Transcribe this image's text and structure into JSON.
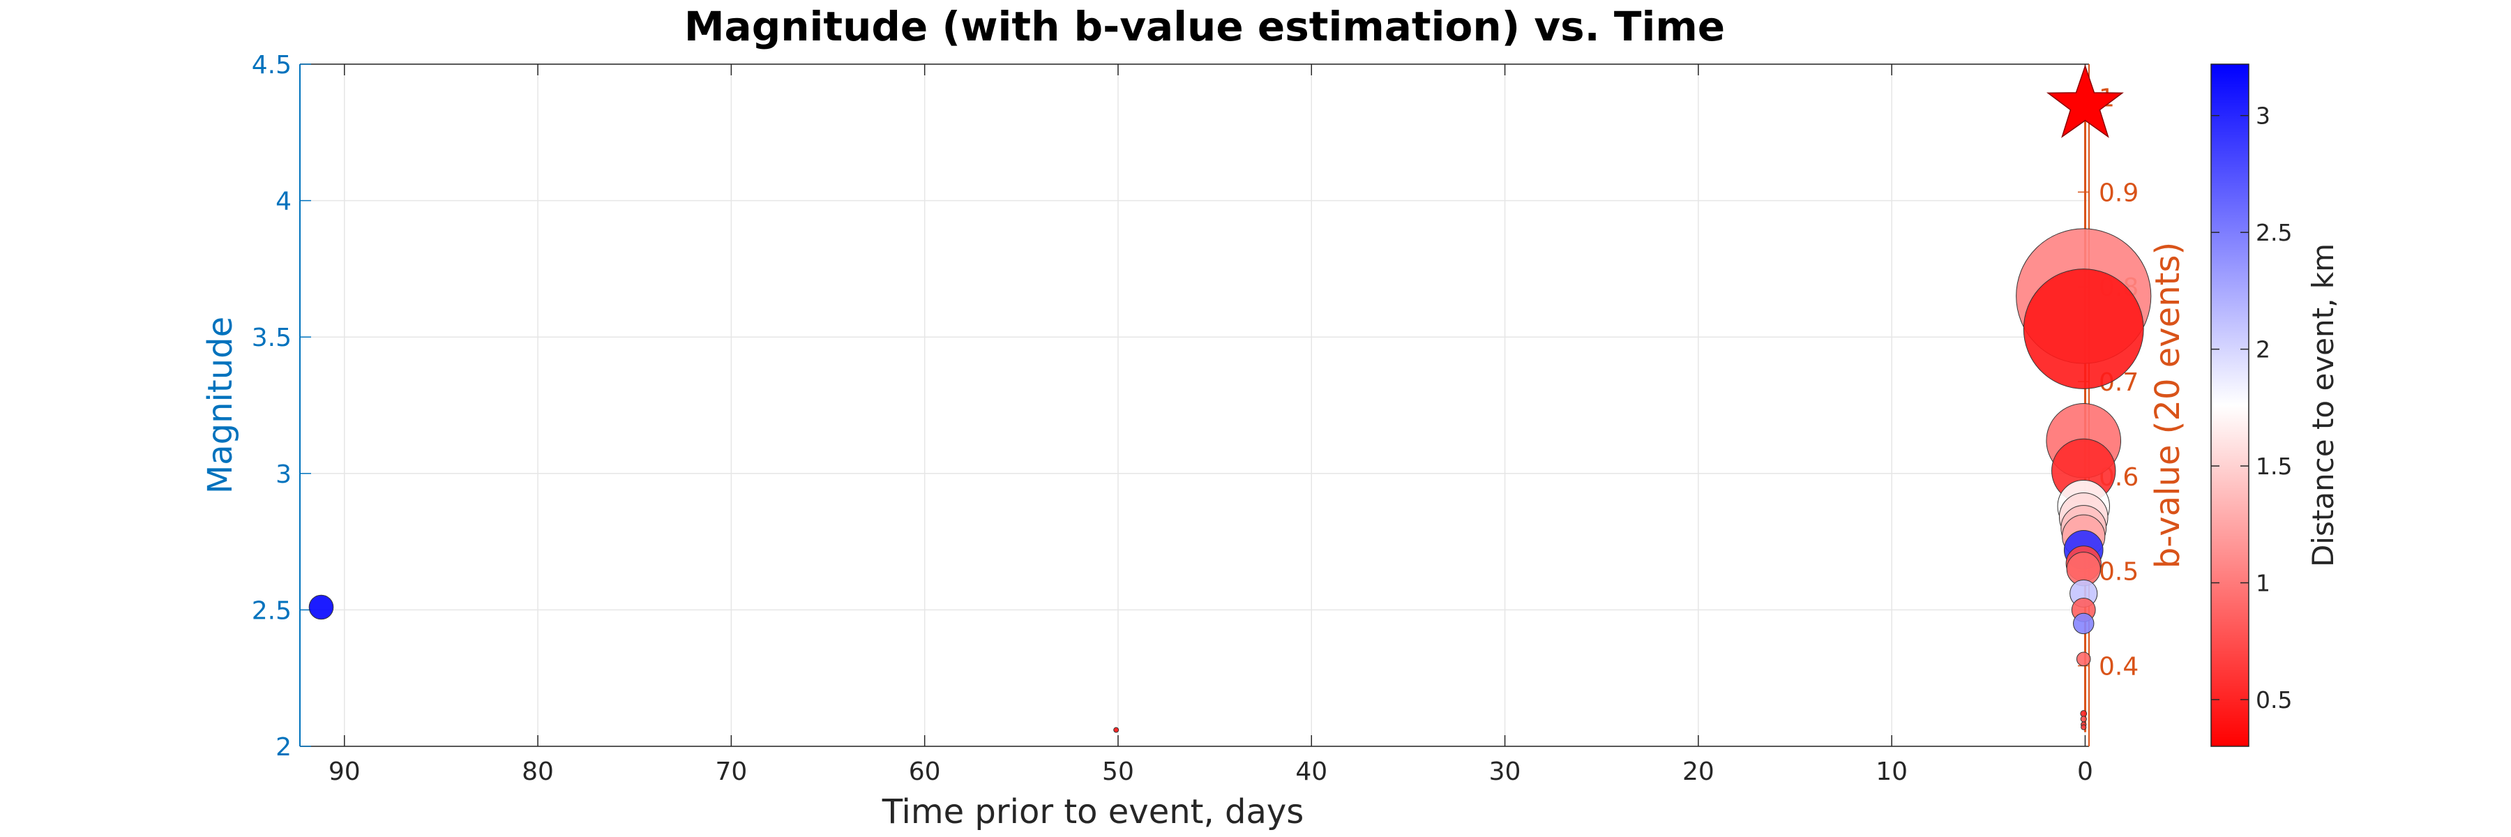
{
  "chart_data": {
    "type": "scatter",
    "title": "Magnitude (with b-value estimation) vs. Time",
    "xlabel": "Time prior to event, days",
    "ylabel_left": "Magnitude",
    "ylabel_right": "b-value (20 events)",
    "colorbar_label": "Distance to event, km",
    "x_reversed": true,
    "xlim": [
      92.3,
      -0.2
    ],
    "ylim_left": [
      2,
      4.5
    ],
    "ylim_right": [
      0.315,
      1.035
    ],
    "x_ticks": [
      90,
      80,
      70,
      60,
      50,
      40,
      30,
      20,
      10,
      0
    ],
    "y_ticks_left": [
      2,
      2.5,
      3,
      3.5,
      4,
      4.5
    ],
    "y_ticks_right": [
      0.4,
      0.5,
      0.6,
      0.7,
      0.8,
      0.9,
      1
    ],
    "colorbar_range": [
      0.3,
      3.22
    ],
    "colorbar_ticks": [
      0.5,
      1,
      1.5,
      2,
      2.5,
      3
    ],
    "grid": true,
    "colors": {
      "left_axis": "#0072BD",
      "right_axis": "#D95319",
      "near": "#FF0000",
      "mid": "#FFFFFF",
      "far": "#0000FF",
      "mainshock": "#FF0000"
    },
    "mainshock": {
      "x": 0,
      "magnitude": 4.35
    },
    "events": [
      {
        "x": 91.2,
        "magnitude": 2.51,
        "distance_km": 3.2
      },
      {
        "x": 50.1,
        "magnitude": 2.06,
        "distance_km": 0.4
      },
      {
        "x": 0.08,
        "magnitude": 3.65,
        "distance_km": 1.05
      },
      {
        "x": 0.08,
        "magnitude": 3.53,
        "distance_km": 0.45
      },
      {
        "x": 0.08,
        "magnitude": 3.12,
        "distance_km": 0.95
      },
      {
        "x": 0.08,
        "magnitude": 3.01,
        "distance_km": 0.55
      },
      {
        "x": 0.08,
        "magnitude": 2.88,
        "distance_km": 1.75
      },
      {
        "x": 0.08,
        "magnitude": 2.84,
        "distance_km": 1.55
      },
      {
        "x": 0.08,
        "magnitude": 2.8,
        "distance_km": 1.4
      },
      {
        "x": 0.08,
        "magnitude": 2.77,
        "distance_km": 1.25
      },
      {
        "x": 0.08,
        "magnitude": 2.72,
        "distance_km": 2.95
      },
      {
        "x": 0.08,
        "magnitude": 2.67,
        "distance_km": 0.7
      },
      {
        "x": 0.08,
        "magnitude": 2.65,
        "distance_km": 0.9
      },
      {
        "x": 0.08,
        "magnitude": 2.56,
        "distance_km": 2.1
      },
      {
        "x": 0.08,
        "magnitude": 2.5,
        "distance_km": 0.85
      },
      {
        "x": 0.08,
        "magnitude": 2.45,
        "distance_km": 2.45
      },
      {
        "x": 0.08,
        "magnitude": 2.32,
        "distance_km": 0.9
      },
      {
        "x": 0.08,
        "magnitude": 2.12,
        "distance_km": 0.5
      },
      {
        "x": 0.08,
        "magnitude": 2.1,
        "distance_km": 0.75
      },
      {
        "x": 0.08,
        "magnitude": 2.08,
        "distance_km": 0.6
      },
      {
        "x": 0.08,
        "magnitude": 2.07,
        "distance_km": 0.65
      }
    ],
    "b_value_series": {
      "x": [
        0,
        0,
        0,
        0,
        0,
        0,
        0,
        0,
        0,
        0
      ],
      "y": [
        1.0,
        0.97,
        0.9,
        0.82,
        0.75,
        0.68,
        0.6,
        0.5,
        0.4,
        0.33
      ]
    }
  }
}
